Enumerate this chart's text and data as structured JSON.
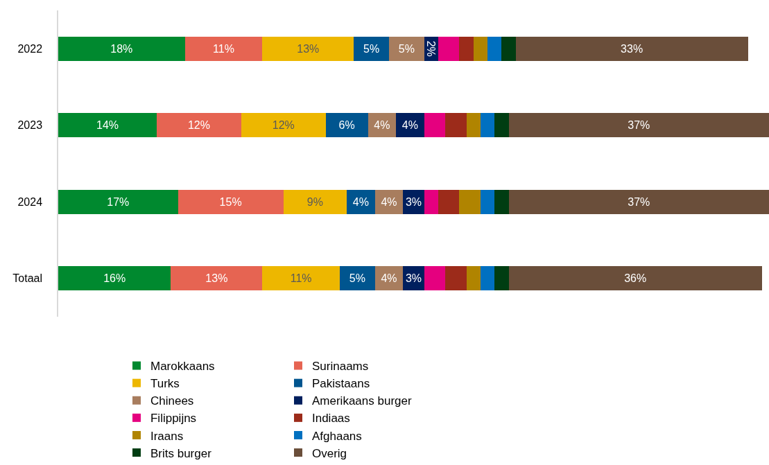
{
  "chart_data": {
    "type": "bar",
    "orientation": "horizontal",
    "stacked": true,
    "legend": "bottom",
    "categories": [
      "2022",
      "2023",
      "2024",
      "Totaal"
    ],
    "series": [
      {
        "name": "Marokkaans",
        "color": "#00892f",
        "values": [
          18,
          14,
          17,
          16
        ],
        "value_labels": [
          "18%",
          "14%",
          "17%",
          "16%"
        ]
      },
      {
        "name": "Surinaams",
        "color": "#e66452",
        "values": [
          11,
          12,
          15,
          13
        ],
        "value_labels": [
          "11%",
          "12%",
          "15%",
          "13%"
        ]
      },
      {
        "name": "Turks",
        "color": "#edb700",
        "values": [
          13,
          12,
          9,
          11
        ],
        "value_labels": [
          "13%",
          "12%",
          "9%",
          "11%"
        ]
      },
      {
        "name": "Pakistaans",
        "color": "#00558f",
        "values": [
          5,
          6,
          4,
          5
        ],
        "value_labels": [
          "5%",
          "6%",
          "4%",
          "5%"
        ]
      },
      {
        "name": "Chinees",
        "color": "#a87d5e",
        "values": [
          5,
          4,
          4,
          4
        ],
        "value_labels": [
          "5%",
          "4%",
          "4%",
          "4%"
        ]
      },
      {
        "name": "Amerikaans burger",
        "color": "#001f5e",
        "values": [
          2,
          4,
          3,
          3
        ],
        "value_labels": [
          "2%",
          "4%",
          "3%",
          "3%"
        ]
      },
      {
        "name": "Filippijns",
        "color": "#e5007f",
        "values": [
          3,
          3,
          2,
          3
        ],
        "value_labels": [
          null,
          null,
          null,
          null
        ]
      },
      {
        "name": "Indiaas",
        "color": "#9c2b1a",
        "values": [
          2,
          3,
          3,
          3
        ],
        "value_labels": [
          null,
          null,
          null,
          null
        ]
      },
      {
        "name": "Iraans",
        "color": "#b08400",
        "values": [
          2,
          2,
          3,
          2
        ],
        "value_labels": [
          null,
          null,
          null,
          null
        ]
      },
      {
        "name": "Afghaans",
        "color": "#0070c0",
        "values": [
          2,
          2,
          2,
          2
        ],
        "value_labels": [
          null,
          null,
          null,
          null
        ]
      },
      {
        "name": "Brits burger",
        "color": "#003d12",
        "values": [
          2,
          2,
          2,
          2
        ],
        "value_labels": [
          null,
          null,
          null,
          null
        ]
      },
      {
        "name": "Overig",
        "color": "#6a4e3a",
        "values": [
          33,
          37,
          37,
          36
        ],
        "value_labels": [
          "33%",
          "37%",
          "37%",
          "36%"
        ]
      }
    ]
  }
}
